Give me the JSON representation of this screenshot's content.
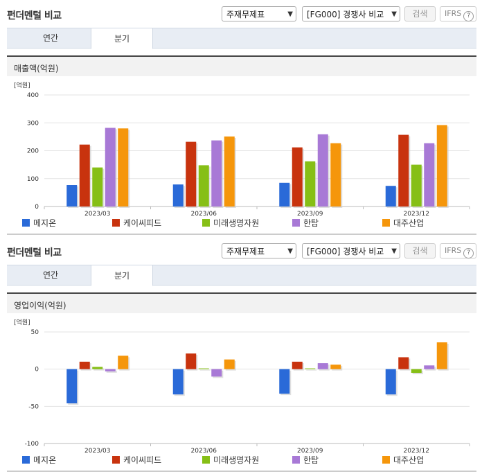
{
  "header": {
    "title": "펀더멘털 비교",
    "statement_select": "주재무제표",
    "compare_select": "[FG000] 경쟁사 비교",
    "search_label": "검색",
    "ifrs_label": "IFRS",
    "help_glyph": "?"
  },
  "tabs": [
    {
      "label": "연간"
    },
    {
      "label": "분기"
    }
  ],
  "active_tab": 1,
  "colors": {
    "메지온": "#2a6ad8",
    "케이씨피드": "#c8330e",
    "미래생명자원": "#86bf16",
    "한탑": "#a879d6",
    "대주산업": "#f5960b"
  },
  "chart_data": [
    {
      "type": "bar",
      "title": "매출액(억원)",
      "unit_label": "[억원]",
      "categories": [
        "2023/03",
        "2023/06",
        "2023/09",
        "2023/12"
      ],
      "ylim": [
        0,
        400
      ],
      "yticks": [
        0,
        100,
        200,
        300,
        400
      ],
      "grid": true,
      "legend": "bottom",
      "series": [
        {
          "name": "메지온",
          "color": "#2a6ad8",
          "values": [
            77,
            79,
            85,
            74
          ]
        },
        {
          "name": "케이씨피드",
          "color": "#c8330e",
          "values": [
            222,
            232,
            212,
            257
          ]
        },
        {
          "name": "미래생명자원",
          "color": "#86bf16",
          "values": [
            140,
            148,
            162,
            150
          ]
        },
        {
          "name": "한탑",
          "color": "#a879d6",
          "values": [
            282,
            237,
            259,
            227
          ]
        },
        {
          "name": "대주산업",
          "color": "#f5960b",
          "values": [
            280,
            251,
            227,
            292
          ]
        }
      ]
    },
    {
      "type": "bar",
      "title": "영업이익(억원)",
      "unit_label": "[억원]",
      "categories": [
        "2023/03",
        "2023/06",
        "2023/09",
        "2023/12"
      ],
      "ylim": [
        -100,
        50
      ],
      "yticks": [
        -100,
        -50,
        0,
        50
      ],
      "grid": true,
      "legend": "bottom",
      "series": [
        {
          "name": "메지온",
          "color": "#2a6ad8",
          "values": [
            -46,
            -34,
            -33,
            -34
          ]
        },
        {
          "name": "케이씨피드",
          "color": "#c8330e",
          "values": [
            10,
            21,
            10,
            16
          ]
        },
        {
          "name": "미래생명자원",
          "color": "#86bf16",
          "values": [
            3,
            1,
            1,
            -5
          ]
        },
        {
          "name": "한탑",
          "color": "#a879d6",
          "values": [
            -3,
            -10,
            8,
            5
          ]
        },
        {
          "name": "대주산업",
          "color": "#f5960b",
          "values": [
            18,
            13,
            6,
            36
          ]
        }
      ]
    }
  ]
}
